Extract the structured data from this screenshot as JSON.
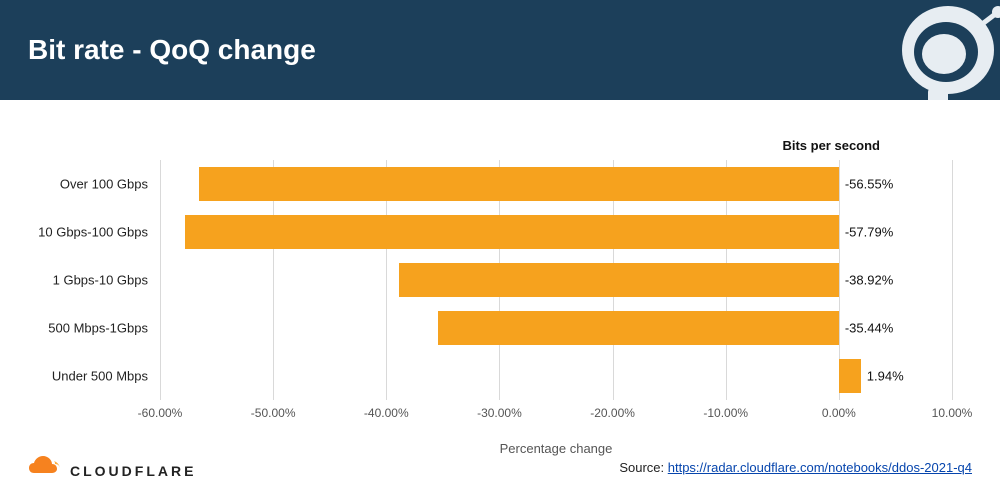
{
  "header": {
    "title": "Bit rate - QoQ change",
    "bg_color": "#1c3f5a",
    "title_color": "#ffffff"
  },
  "chart": {
    "type": "bar-horizontal",
    "series_label": "Bits per second",
    "x_title": "Percentage change",
    "categories": [
      "Over 100 Gbps",
      "10 Gbps-100 Gbps",
      "1 Gbps-10 Gbps",
      "500 Mbps-1Gbps",
      "Under 500 Mbps"
    ],
    "values": [
      -56.55,
      -57.79,
      -38.92,
      -35.44,
      1.94
    ],
    "value_labels": [
      "-56.55%",
      "-57.79%",
      "-38.92%",
      "-35.44%",
      "1.94%"
    ],
    "bar_color": "#f6a21e",
    "xlim": [
      -60,
      10
    ],
    "xticks": [
      -60,
      -50,
      -40,
      -30,
      -20,
      -10,
      0,
      10
    ],
    "xtick_labels": [
      "-60.00%",
      "-50.00%",
      "-40.00%",
      "-30.00%",
      "-20.00%",
      "-10.00%",
      "0.00%",
      "10.00%"
    ],
    "grid_color": "#d9d9d9",
    "label_fontsize": 13,
    "tick_fontsize": 12,
    "row_height_pct": 14,
    "row_gap_pct": 6
  },
  "footer": {
    "logo_text": "CLOUDFLARE",
    "logo_color": "#f6821f",
    "source_prefix": "Source: ",
    "source_url_text": "https://radar.cloudflare.com/notebooks/ddos-2021-q4"
  }
}
